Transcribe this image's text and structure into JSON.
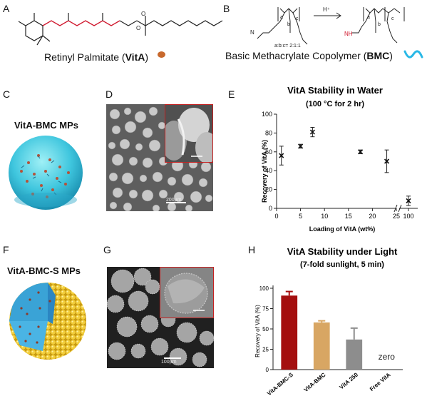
{
  "panels": {
    "a": {
      "label": "A",
      "caption_prefix": "Retinyl Palmitate (",
      "caption_bold": "VitA",
      "caption_suffix": ")"
    },
    "b": {
      "label": "B",
      "ratio": "a:b:c= 2:1:1",
      "arrow_label": "H⁺",
      "caption_prefix": "Basic Methacrylate Copolymer (",
      "caption_bold": "BMC",
      "caption_suffix": ")"
    },
    "c": {
      "label": "C",
      "title": "VitA-BMC MPs"
    },
    "d": {
      "label": "D",
      "scale_text": "200µm"
    },
    "e": {
      "label": "E"
    },
    "f": {
      "label": "F",
      "title": "VitA-BMC-S MPs"
    },
    "g": {
      "label": "G",
      "scale_text": "100µm"
    },
    "h": {
      "label": "H"
    }
  },
  "chart_data": [
    {
      "type": "scatter",
      "title": "VitA Stability in Water",
      "subtitle": "(100 °C for 2 hr)",
      "xlabel": "Loading of VitA (wt%)",
      "ylabel": "Recovery of VitA (%)",
      "ylim": [
        0,
        100
      ],
      "yticks": [
        0,
        20,
        40,
        60,
        80,
        100
      ],
      "xticks": [
        0,
        5,
        10,
        15,
        20,
        25,
        100
      ],
      "x_axis_break": "25-100",
      "points": [
        {
          "x": 1,
          "y": 56,
          "err": 10
        },
        {
          "x": 5,
          "y": 66,
          "err": 2
        },
        {
          "x": 7.5,
          "y": 81,
          "err": 5
        },
        {
          "x": 17.5,
          "y": 60,
          "err": 2
        },
        {
          "x": 23,
          "y": 50,
          "err": 12
        },
        {
          "x": 100,
          "y": 8,
          "err": 5
        }
      ]
    },
    {
      "type": "bar",
      "title": "VitA Stability under Light",
      "subtitle": "(7-fold sunlight, 5 min)",
      "xlabel": "",
      "ylabel": "Recovery of VitA (%)",
      "ylim": [
        0,
        100
      ],
      "yticks": [
        0,
        25,
        50,
        75,
        100
      ],
      "categories": [
        "VitA-BMC-S",
        "VitA-BMC",
        "VitA 250",
        "Free VitA"
      ],
      "values": [
        91,
        58,
        37,
        0
      ],
      "errors": [
        5,
        2,
        14,
        0
      ],
      "bar_labels": [
        "",
        "",
        "",
        "zero"
      ],
      "colors": [
        "#a40f0f",
        "#d8a663",
        "#8d8d8d",
        "#ffffff"
      ]
    }
  ]
}
